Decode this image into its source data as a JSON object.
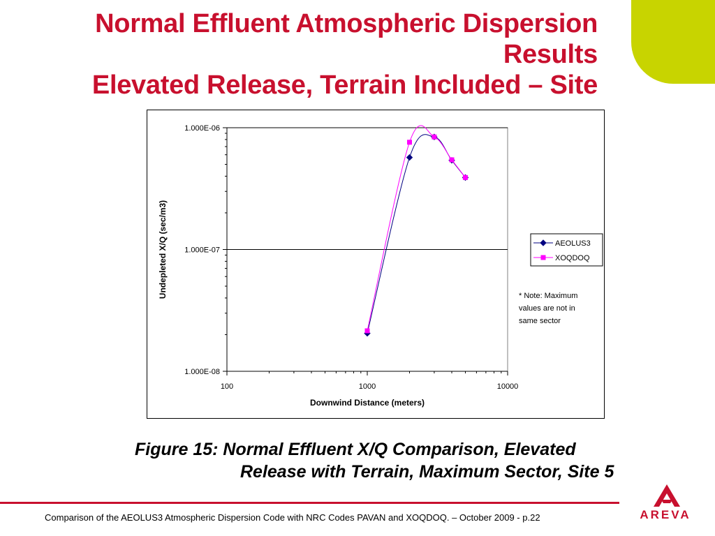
{
  "slide": {
    "title_lines": [
      "Normal Effluent Atmospheric Dispersion",
      "Results",
      "Elevated Release, Terrain Included – Site"
    ],
    "caption_line1": "Figure 15:  Normal Effluent X/Q Comparison, Elevated",
    "caption_line2": "Release with Terrain, Maximum Sector, Site 5",
    "footer": "Comparison of the AEOLUS3 Atmospheric Dispersion Code with NRC Codes PAVAN and XOQDOQ. – October 2009 - p.22",
    "logo_text": "AREVA",
    "colors": {
      "title": "#c8102e",
      "accent_green": "#c8d400",
      "footer_line": "#c8102e"
    }
  },
  "chart_data": {
    "type": "line",
    "xlabel": "Downwind Distance (meters)",
    "ylabel": "Undepleted X/Q (sec/m3)",
    "x_scale": "log",
    "y_scale": "log",
    "xlim": [
      100,
      10000
    ],
    "ylim": [
      1e-08,
      1e-06
    ],
    "x_ticks": [
      100,
      1000,
      10000
    ],
    "x_tick_labels": [
      "100",
      "1000",
      "10000"
    ],
    "y_ticks": [
      1e-08,
      1e-07,
      1e-06
    ],
    "y_tick_labels": [
      "1.000E-08",
      "1.000E-07",
      "1.000E-06"
    ],
    "grid": "major horizontal",
    "legend_position": "right",
    "series": [
      {
        "name": "AEOLUS3",
        "color": "#000080",
        "marker": "diamond",
        "x": [
          1000,
          2000,
          3000,
          4000,
          5000
        ],
        "y": [
          2.05e-08,
          5.7e-07,
          8.4e-07,
          5.4e-07,
          3.9e-07
        ]
      },
      {
        "name": "XOQDOQ",
        "color": "#ff00ff",
        "marker": "square",
        "x": [
          1000,
          2000,
          3000,
          4000,
          5000
        ],
        "y": [
          2.15e-08,
          7.6e-07,
          8.4e-07,
          5.45e-07,
          3.9e-07
        ]
      }
    ],
    "annotation_lines": [
      "* Note:  Maximum",
      "values are not in",
      "same sector"
    ]
  }
}
